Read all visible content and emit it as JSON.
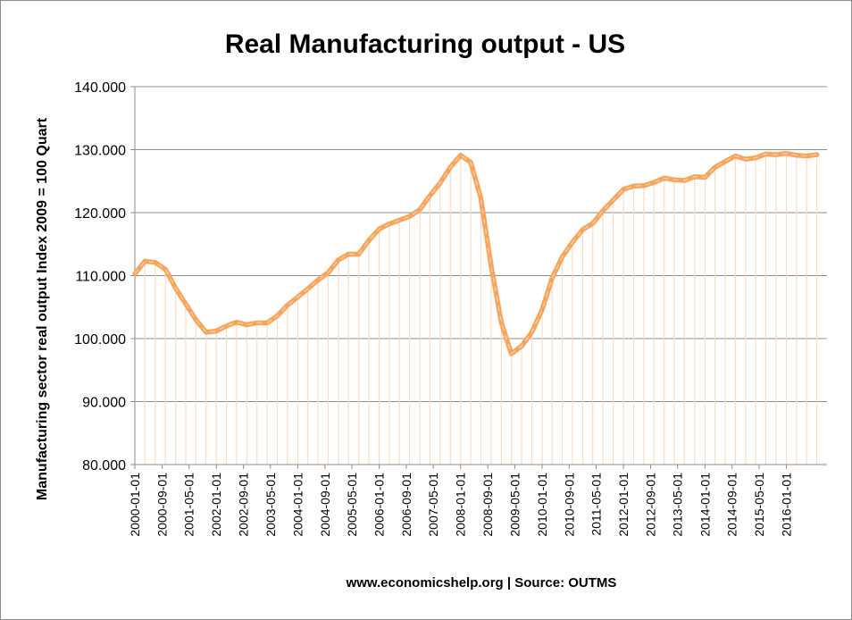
{
  "chart_data": {
    "type": "line",
    "title": "Real Manufacturing output - US",
    "xlabel": "",
    "ylabel": "Manufacturing sector real output Index 2009 = 100 Quart",
    "ylim": [
      80,
      140
    ],
    "yticks": [
      "80.000",
      "90.000",
      "100.000",
      "110.000",
      "120.000",
      "130.000",
      "140.000"
    ],
    "xtick_labels": [
      "2000-01-01",
      "2000-09-01",
      "2001-05-01",
      "2002-01-01",
      "2002-09-01",
      "2003-05-01",
      "2004-01-01",
      "2004-09-01",
      "2005-05-01",
      "2006-01-01",
      "2006-09-01",
      "2007-05-01",
      "2008-01-01",
      "2008-09-01",
      "2009-05-01",
      "2010-01-01",
      "2010-09-01",
      "2011-05-01",
      "2012-01-01",
      "2012-09-01",
      "2013-05-01",
      "2014-01-01",
      "2014-09-01",
      "2015-05-01",
      "2016-01-01"
    ],
    "x": [
      "2000-01-01",
      "2000-04-01",
      "2000-07-01",
      "2000-10-01",
      "2001-01-01",
      "2001-04-01",
      "2001-07-01",
      "2001-10-01",
      "2002-01-01",
      "2002-04-01",
      "2002-07-01",
      "2002-10-01",
      "2003-01-01",
      "2003-04-01",
      "2003-07-01",
      "2003-10-01",
      "2004-01-01",
      "2004-04-01",
      "2004-07-01",
      "2004-10-01",
      "2005-01-01",
      "2005-04-01",
      "2005-07-01",
      "2005-10-01",
      "2006-01-01",
      "2006-04-01",
      "2006-07-01",
      "2006-10-01",
      "2007-01-01",
      "2007-04-01",
      "2007-07-01",
      "2007-10-01",
      "2008-01-01",
      "2008-04-01",
      "2008-07-01",
      "2008-10-01",
      "2009-01-01",
      "2009-04-01",
      "2009-07-01",
      "2009-10-01",
      "2010-01-01",
      "2010-04-01",
      "2010-07-01",
      "2010-10-01",
      "2011-01-01",
      "2011-04-01",
      "2011-07-01",
      "2011-10-01",
      "2012-01-01",
      "2012-04-01",
      "2012-07-01",
      "2012-10-01",
      "2013-01-01",
      "2013-04-01",
      "2013-07-01",
      "2013-10-01",
      "2014-01-01",
      "2014-04-01",
      "2014-07-01",
      "2014-10-01",
      "2015-01-01",
      "2015-04-01",
      "2015-07-01",
      "2015-10-01",
      "2016-01-01",
      "2016-04-01",
      "2016-07-01",
      "2016-10-01"
    ],
    "series": [
      {
        "values": [
          110.3,
          112.3,
          112.1,
          111.0,
          108.0,
          105.5,
          103.0,
          101.0,
          101.2,
          102.0,
          102.6,
          102.2,
          102.5,
          102.5,
          103.6,
          105.3,
          106.6,
          107.9,
          109.3,
          110.5,
          112.5,
          113.4,
          113.4,
          115.6,
          117.4,
          118.2,
          118.8,
          119.4,
          120.5,
          122.7,
          124.7,
          127.2,
          129.1,
          128.0,
          122.3,
          111.6,
          102.5,
          97.6,
          98.8,
          101.0,
          104.6,
          109.6,
          113.0,
          115.3,
          117.3,
          118.3,
          120.3,
          122.0,
          123.7,
          124.2,
          124.3,
          124.8,
          125.5,
          125.2,
          125.1,
          125.7,
          125.6,
          127.2,
          128.1,
          129.0,
          128.5,
          128.7,
          129.3,
          129.2,
          129.4,
          129.1,
          129.0,
          129.2
        ],
        "color": "#f6a65c"
      }
    ],
    "grid": true,
    "legend": "none",
    "drop_lines": true,
    "source_note": "www.economicshelp.org | Source: OUTMS"
  }
}
